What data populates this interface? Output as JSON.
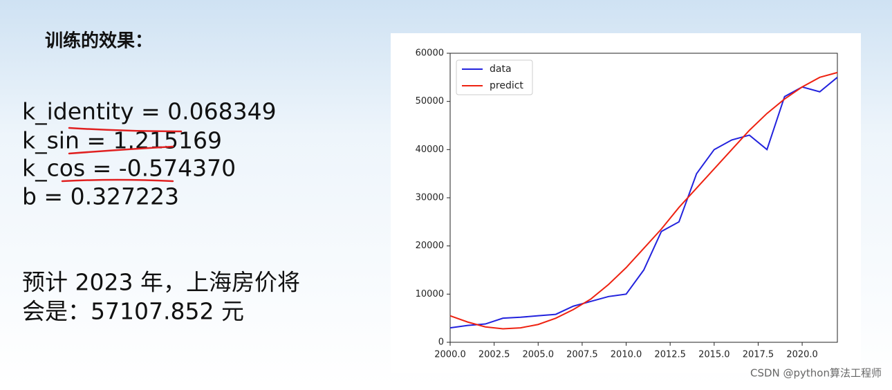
{
  "heading": "训练的效果：",
  "params": [
    "k_identity = 0.068349",
    "k_sin = 1.215169",
    "k_cos = -0.574370",
    "b = 0.327223"
  ],
  "prediction": [
    "预计 2023 年，上海房价将",
    "会是：57107.852 元"
  ],
  "watermark": "CSDN @python算法工程师",
  "chart_data": {
    "type": "line",
    "x": [
      2000,
      2001,
      2002,
      2003,
      2004,
      2005,
      2006,
      2007,
      2008,
      2009,
      2010,
      2011,
      2012,
      2013,
      2014,
      2015,
      2016,
      2017,
      2018,
      2019,
      2020,
      2021,
      2022
    ],
    "series": [
      {
        "name": "data",
        "color": "#2222dd",
        "values": [
          3000,
          3500,
          3800,
          5000,
          5200,
          5500,
          5800,
          7500,
          8500,
          9500,
          10000,
          15000,
          23000,
          25000,
          35000,
          40000,
          42000,
          43000,
          40000,
          51000,
          53000,
          52000,
          55000
        ]
      },
      {
        "name": "predict",
        "color": "#ee2211",
        "values": [
          5500,
          4200,
          3200,
          2800,
          3000,
          3700,
          5000,
          6800,
          9000,
          12000,
          15500,
          19500,
          23500,
          28000,
          32000,
          36000,
          40000,
          44000,
          47500,
          50500,
          53000,
          55000,
          56000
        ]
      }
    ],
    "xlim": [
      2000,
      2022
    ],
    "xticks": [
      {
        "value": 2000,
        "label": "2000.0"
      },
      {
        "value": 2002.5,
        "label": "2002.5"
      },
      {
        "value": 2005,
        "label": "2005.0"
      },
      {
        "value": 2007.5,
        "label": "2007.5"
      },
      {
        "value": 2010,
        "label": "2010.0"
      },
      {
        "value": 2012.5,
        "label": "2012.5"
      },
      {
        "value": 2015,
        "label": "2015.0"
      },
      {
        "value": 2017.5,
        "label": "2017.5"
      },
      {
        "value": 2020,
        "label": "2020.0"
      }
    ],
    "ylim": [
      0,
      60000
    ],
    "yticks": [
      0,
      10000,
      20000,
      30000,
      40000,
      50000,
      60000
    ],
    "legend": "upper-left"
  }
}
